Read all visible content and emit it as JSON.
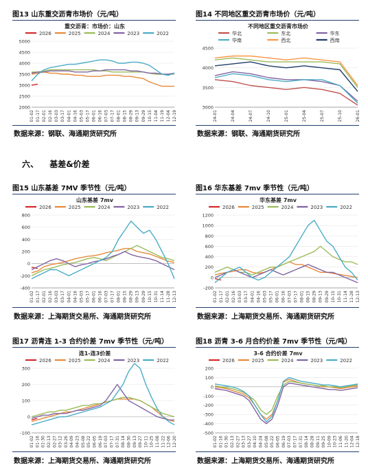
{
  "section": {
    "number": "六、",
    "title": "基差&价差"
  },
  "figures": [
    {
      "label": "图13  山东重交沥青市场价（元/吨）",
      "source": "数据来源：钢联、海通期货研究所"
    },
    {
      "label": "图14  不同地区重交沥青市场价（元/吨）",
      "source": "数据来源：钢联、海通期货研究所"
    },
    {
      "label": "图15  山东基差 7MV 季节性（元/吨）",
      "source": "数据来源：上海期货交易所、海通期货研究所"
    },
    {
      "label": "图16  华东基差 7mv 季节性（元/吨）",
      "source": "数据来源：上海期货交易所、海通期货研究所"
    },
    {
      "label": "图17  沥青连 1-3 合约价差 7mv 季节性（元/吨）",
      "source": "数据来源：上海期货交易所、海通期货研究所"
    },
    {
      "label": "图18  沥青 3-6 月合约价差 7mv 季节性（元/吨）",
      "source": "数据来源：上海期货交易所、海通期货研究所"
    }
  ],
  "chart_data": [
    {
      "type": "line",
      "title": "重交沥青：市场价：山东",
      "categories": [
        "01-02",
        "01-17",
        "02-01",
        "02-16",
        "03-03",
        "03-17",
        "04-01",
        "04-16",
        "05-03",
        "05-17",
        "06-01",
        "06-16",
        "07-03",
        "07-17",
        "08-01",
        "08-15",
        "08-29",
        "09-13",
        "09-29",
        "10-15",
        "11-04",
        "11-19",
        "12-04",
        "12-19"
      ],
      "ylim": [
        2000,
        5000
      ],
      "yticks": [
        2000,
        2500,
        3000,
        3500,
        4000,
        4500,
        5000
      ],
      "legend": "top",
      "series": [
        {
          "name": "2026",
          "color": "#d6282b",
          "values": [
            3000,
            3050,
            null,
            null,
            null,
            null,
            null,
            null,
            null,
            null,
            null,
            null,
            null,
            null,
            null,
            null,
            null,
            null,
            null,
            null,
            null,
            null,
            null,
            null
          ]
        },
        {
          "name": "2025",
          "color": "#e8893a",
          "values": [
            3500,
            3550,
            3600,
            3550,
            3550,
            3500,
            3500,
            3450,
            3450,
            3400,
            3400,
            3400,
            3450,
            3450,
            3450,
            3400,
            3400,
            3350,
            3300,
            3150,
            3050,
            2950,
            2950,
            2950
          ]
        },
        {
          "name": "2024",
          "color": "#9bbb59",
          "values": [
            3600,
            3600,
            3650,
            3700,
            3700,
            3700,
            3700,
            3700,
            3700,
            3700,
            3700,
            3650,
            3650,
            3600,
            3600,
            3600,
            3600,
            3600,
            3600,
            3550,
            3500,
            3500,
            3500,
            3500
          ]
        },
        {
          "name": "2023",
          "color": "#8064a2",
          "values": [
            3550,
            3600,
            3600,
            3650,
            3650,
            3650,
            3650,
            3600,
            3600,
            3600,
            3650,
            3650,
            3700,
            3700,
            3700,
            3700,
            3650,
            3650,
            3600,
            3550,
            3550,
            3500,
            3500,
            3550
          ]
        },
        {
          "name": "2022",
          "color": "#4bacc6",
          "values": [
            3200,
            3500,
            3700,
            3800,
            3850,
            3900,
            3950,
            3950,
            4000,
            4050,
            4100,
            4150,
            4150,
            4100,
            4000,
            4000,
            4050,
            4050,
            4000,
            3900,
            3700,
            3500,
            3450,
            3550
          ]
        }
      ]
    },
    {
      "type": "line",
      "title": "不同地区重交沥青市场价",
      "categories": [
        "24-01",
        "24-04",
        "24-07",
        "24-10",
        "25-01",
        "25-04",
        "25-07",
        "25-10",
        "26-01"
      ],
      "ylim": [
        3000,
        4500
      ],
      "yticks": [
        3000,
        3500,
        4000,
        4500
      ],
      "legend": "top",
      "series": [
        {
          "name": "华北",
          "color": "#c0504d",
          "values": [
            3700,
            3650,
            3550,
            3500,
            3450,
            3500,
            3450,
            3350,
            3050
          ]
        },
        {
          "name": "东北",
          "color": "#9bbb59",
          "values": [
            4200,
            4250,
            4200,
            4150,
            4150,
            4150,
            4150,
            4100,
            3500
          ]
        },
        {
          "name": "华东",
          "color": "#8064a2",
          "values": [
            3800,
            3900,
            3850,
            3750,
            3700,
            3700,
            3650,
            3550,
            3150
          ]
        },
        {
          "name": "华南",
          "color": "#4bacc6",
          "values": [
            3750,
            3850,
            3800,
            3700,
            3650,
            3700,
            3700,
            3550,
            3100
          ]
        },
        {
          "name": "西北",
          "color": "#f79646",
          "values": [
            4250,
            4300,
            4300,
            4250,
            4200,
            4250,
            4200,
            4150,
            3550
          ]
        },
        {
          "name": "西南",
          "color": "#1f3d6b",
          "values": [
            4050,
            4100,
            4150,
            4050,
            4000,
            4050,
            4000,
            3950,
            3400
          ]
        }
      ]
    },
    {
      "type": "line",
      "title": "山东基差 7mv",
      "categories": [
        "01-02",
        "01-17",
        "02-01",
        "02-16",
        "03-03",
        "03-17",
        "04-01",
        "04-16",
        "05-03",
        "05-17",
        "06-01",
        "06-16",
        "07-03",
        "07-17",
        "08-01",
        "08-15",
        "08-29",
        "09-13",
        "09-29",
        "10-15",
        "10-31",
        "11-14",
        "11-28",
        "12-13"
      ],
      "ylim": [
        -400,
        800
      ],
      "yticks": [
        -400,
        -200,
        0,
        200,
        400,
        600,
        800
      ],
      "legend": "top",
      "series": [
        {
          "name": "2026",
          "color": "#d6282b",
          "values": [
            -60,
            -80,
            null,
            null,
            null,
            null,
            null,
            null,
            null,
            null,
            null,
            null,
            null,
            null,
            null,
            null,
            null,
            null,
            null,
            null,
            null,
            null,
            null,
            null
          ]
        },
        {
          "name": "2025",
          "color": "#e8893a",
          "values": [
            -150,
            -120,
            -50,
            -20,
            0,
            20,
            50,
            80,
            100,
            120,
            130,
            150,
            180,
            200,
            220,
            250,
            250,
            200,
            180,
            160,
            120,
            80,
            40,
            20
          ]
        },
        {
          "name": "2024",
          "color": "#9bbb59",
          "values": [
            -200,
            -150,
            -100,
            -80,
            -50,
            -20,
            0,
            20,
            50,
            80,
            100,
            80,
            50,
            100,
            150,
            200,
            250,
            300,
            250,
            200,
            150,
            100,
            80,
            50
          ]
        },
        {
          "name": "2023",
          "color": "#8064a2",
          "values": [
            -100,
            -50,
            0,
            50,
            80,
            50,
            0,
            -50,
            -20,
            0,
            30,
            50,
            80,
            120,
            150,
            200,
            150,
            120,
            100,
            80,
            50,
            0,
            -50,
            -100
          ]
        },
        {
          "name": "2022",
          "color": "#4bacc6",
          "values": [
            -250,
            -200,
            -150,
            -100,
            -100,
            -150,
            -200,
            -150,
            -100,
            -50,
            0,
            50,
            100,
            200,
            400,
            550,
            700,
            600,
            500,
            550,
            400,
            200,
            0,
            -250
          ]
        }
      ]
    },
    {
      "type": "line",
      "title": "华东基差 7mv",
      "categories": [
        "01-02",
        "01-17",
        "02-01",
        "02-16",
        "03-03",
        "03-17",
        "04-01",
        "04-16",
        "05-03",
        "05-17",
        "06-01",
        "06-16",
        "07-03",
        "07-17",
        "08-01",
        "08-15",
        "08-29",
        "09-13",
        "09-29",
        "10-15",
        "10-31",
        "11-14",
        "11-28",
        "12-13"
      ],
      "ylim": [
        -200,
        1200
      ],
      "yticks": [
        -200,
        0,
        200,
        400,
        600,
        800,
        1000,
        1200
      ],
      "legend": "top",
      "series": [
        {
          "name": "2026",
          "color": "#d6282b",
          "values": [
            -20,
            -50,
            null,
            null,
            null,
            null,
            null,
            null,
            null,
            null,
            null,
            null,
            null,
            null,
            null,
            null,
            null,
            null,
            null,
            null,
            null,
            null,
            null,
            null
          ]
        },
        {
          "name": "2025",
          "color": "#e8893a",
          "values": [
            50,
            80,
            100,
            120,
            150,
            150,
            100,
            80,
            100,
            150,
            200,
            250,
            300,
            250,
            250,
            200,
            150,
            100,
            100,
            80,
            60,
            40,
            20,
            0
          ]
        },
        {
          "name": "2024",
          "color": "#9bbb59",
          "values": [
            100,
            150,
            200,
            150,
            100,
            100,
            50,
            100,
            150,
            200,
            200,
            250,
            300,
            350,
            400,
            450,
            500,
            600,
            500,
            400,
            350,
            300,
            300,
            250
          ]
        },
        {
          "name": "2023",
          "color": "#8064a2",
          "values": [
            0,
            50,
            100,
            150,
            100,
            50,
            0,
            50,
            100,
            150,
            100,
            50,
            100,
            150,
            200,
            250,
            200,
            150,
            100,
            100,
            50,
            0,
            -50,
            -100
          ]
        },
        {
          "name": "2022",
          "color": "#4bacc6",
          "values": [
            -100,
            0,
            100,
            150,
            200,
            100,
            0,
            -50,
            0,
            100,
            200,
            300,
            400,
            600,
            800,
            1000,
            1100,
            900,
            700,
            600,
            400,
            200,
            100,
            -50
          ]
        }
      ]
    },
    {
      "type": "line",
      "title": "连1-连3价差",
      "categories": [
        "01-02",
        "01-16",
        "01-30",
        "02-13",
        "02-27",
        "03-12",
        "03-26",
        "04-09",
        "04-23",
        "05-08",
        "05-22",
        "06-05",
        "06-19",
        "07-03",
        "07-17",
        "07-31",
        "08-14",
        "08-30",
        "09-13",
        "09-27",
        "10-11",
        "10-25",
        "11-08",
        "11-22",
        "12-06",
        "12-20"
      ],
      "ylim": [
        -100,
        300
      ],
      "yticks": [
        -100,
        0,
        100,
        200,
        300
      ],
      "legend": "top",
      "series": [
        {
          "name": "2026",
          "color": "#d6282b",
          "values": [
            -20,
            -10,
            null,
            null,
            null,
            null,
            null,
            null,
            null,
            null,
            null,
            null,
            null,
            null,
            null,
            null,
            null,
            null,
            null,
            null,
            null,
            null,
            null,
            null,
            null,
            null
          ]
        },
        {
          "name": "2025",
          "color": "#e8893a",
          "values": [
            -30,
            -20,
            -10,
            0,
            10,
            20,
            30,
            30,
            40,
            50,
            60,
            70,
            80,
            90,
            100,
            110,
            110,
            110,
            110,
            100,
            80,
            60,
            30,
            0,
            -20,
            -30
          ]
        },
        {
          "name": "2024",
          "color": "#9bbb59",
          "values": [
            0,
            10,
            20,
            30,
            30,
            40,
            40,
            50,
            60,
            70,
            70,
            80,
            80,
            90,
            100,
            110,
            120,
            120,
            110,
            100,
            80,
            60,
            40,
            20,
            10,
            0
          ]
        },
        {
          "name": "2023",
          "color": "#8064a2",
          "values": [
            -10,
            0,
            10,
            10,
            20,
            20,
            20,
            30,
            40,
            40,
            50,
            60,
            70,
            100,
            150,
            200,
            150,
            100,
            80,
            60,
            40,
            20,
            0,
            -10,
            -20,
            -20
          ]
        },
        {
          "name": "2022",
          "color": "#4bacc6",
          "values": [
            -50,
            -40,
            -30,
            -20,
            -10,
            0,
            0,
            10,
            20,
            30,
            40,
            50,
            60,
            80,
            100,
            150,
            200,
            280,
            330,
            300,
            200,
            120,
            50,
            0,
            -30,
            -50
          ]
        }
      ]
    },
    {
      "type": "line",
      "title": "3-6 合约价差 7mv",
      "categories": [
        "01-02",
        "01-16",
        "01-30",
        "02-13",
        "02-27",
        "03-13",
        "03-27",
        "04-10",
        "04-24",
        "05-08",
        "05-22",
        "06-05",
        "06-19",
        "07-03",
        "07-17",
        "07-31",
        "08-14",
        "08-28",
        "09-11",
        "09-25",
        "10-09",
        "10-23",
        "11-06",
        "11-20",
        "12-04",
        "12-18"
      ],
      "ylim": [
        -500,
        200
      ],
      "yticks": [
        -500,
        -400,
        -300,
        -200,
        -100,
        0,
        100,
        200
      ],
      "legend": "top",
      "series": [
        {
          "name": "2026",
          "color": "#d6282b",
          "values": [
            -20,
            -30,
            null,
            null,
            null,
            null,
            null,
            null,
            null,
            null,
            null,
            null,
            null,
            null,
            null,
            null,
            null,
            null,
            null,
            null,
            null,
            null,
            null,
            null,
            null,
            null
          ]
        },
        {
          "name": "2025",
          "color": "#e8893a",
          "values": [
            0,
            -10,
            -20,
            -40,
            -60,
            -80,
            -120,
            -200,
            -300,
            -350,
            -300,
            -150,
            50,
            80,
            60,
            40,
            30,
            20,
            10,
            0,
            0,
            -10,
            -20,
            -10,
            0,
            10
          ]
        },
        {
          "name": "2024",
          "color": "#9bbb59",
          "values": [
            10,
            0,
            -10,
            -20,
            -40,
            -60,
            -100,
            -150,
            -250,
            -300,
            -250,
            -100,
            20,
            60,
            50,
            40,
            30,
            20,
            10,
            10,
            0,
            0,
            -10,
            0,
            10,
            20
          ]
        },
        {
          "name": "2023",
          "color": "#8064a2",
          "values": [
            -20,
            -30,
            -40,
            -60,
            -80,
            -100,
            -150,
            -250,
            -350,
            -400,
            -350,
            -200,
            0,
            40,
            30,
            20,
            10,
            0,
            -10,
            -20,
            -30,
            -30,
            -40,
            -30,
            -20,
            -10
          ]
        },
        {
          "name": "2022",
          "color": "#4bacc6",
          "values": [
            30,
            20,
            10,
            0,
            -20,
            -50,
            -100,
            -200,
            -300,
            -380,
            -320,
            -150,
            60,
            100,
            80,
            60,
            50,
            40,
            30,
            20,
            20,
            10,
            0,
            10,
            20,
            30
          ]
        }
      ]
    }
  ]
}
